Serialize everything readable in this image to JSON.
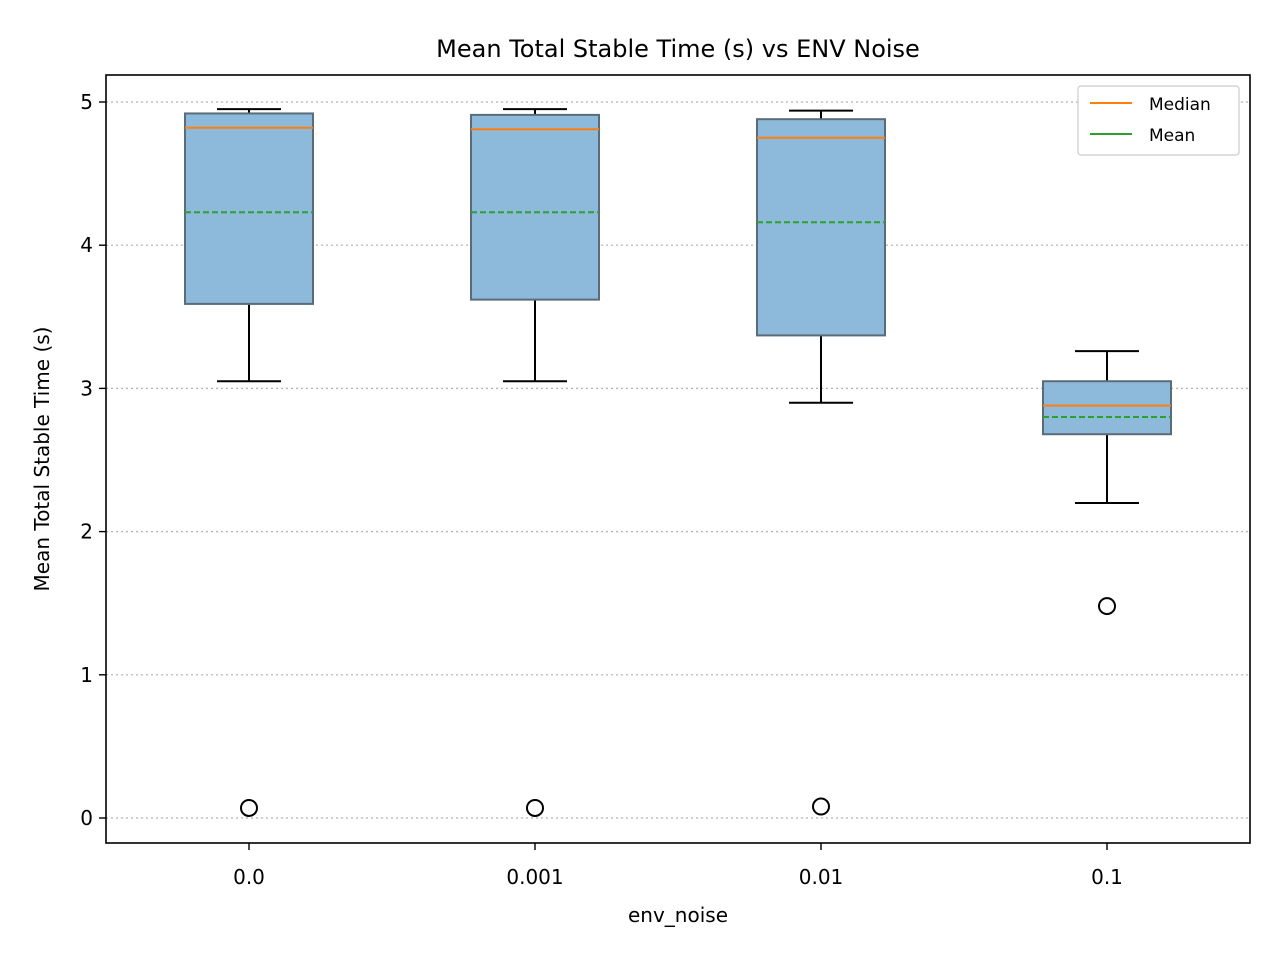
{
  "chart_data": {
    "type": "box",
    "title": "Mean Total Stable Time (s) vs ENV Noise",
    "xlabel": "env_noise",
    "ylabel": "Mean Total Stable Time (s)",
    "categories": [
      "0.0",
      "0.001",
      "0.01",
      "0.1"
    ],
    "ylim": [
      -0.17,
      5.2
    ],
    "yticks": [
      0,
      1,
      2,
      3,
      4,
      5
    ],
    "grid": "y-dotted",
    "legend": {
      "position": "top-right",
      "entries": [
        {
          "label": "Median",
          "color": "#ff7f0e"
        },
        {
          "label": "Mean",
          "color": "#2ca02c"
        }
      ]
    },
    "colors": {
      "box_fill": "#8db9da",
      "box_edge": "#5a6b7a",
      "median": "#ff7f0e",
      "mean": "#2ca02c",
      "whisker": "#000000",
      "grid": "#b0b0b0"
    },
    "boxes": [
      {
        "category": "0.0",
        "whisker_low": 3.05,
        "q1": 3.59,
        "median": 4.82,
        "mean": 4.23,
        "q3": 4.92,
        "whisker_high": 4.95,
        "outliers": [
          0.07
        ]
      },
      {
        "category": "0.001",
        "whisker_low": 3.05,
        "q1": 3.62,
        "median": 4.81,
        "mean": 4.23,
        "q3": 4.91,
        "whisker_high": 4.95,
        "outliers": [
          0.07
        ]
      },
      {
        "category": "0.01",
        "whisker_low": 2.9,
        "q1": 3.37,
        "median": 4.75,
        "mean": 4.16,
        "q3": 4.88,
        "whisker_high": 4.94,
        "outliers": [
          0.08
        ]
      },
      {
        "category": "0.1",
        "whisker_low": 2.2,
        "q1": 2.68,
        "median": 2.88,
        "mean": 2.8,
        "q3": 3.05,
        "whisker_high": 3.26,
        "outliers": [
          1.48
        ]
      }
    ]
  }
}
